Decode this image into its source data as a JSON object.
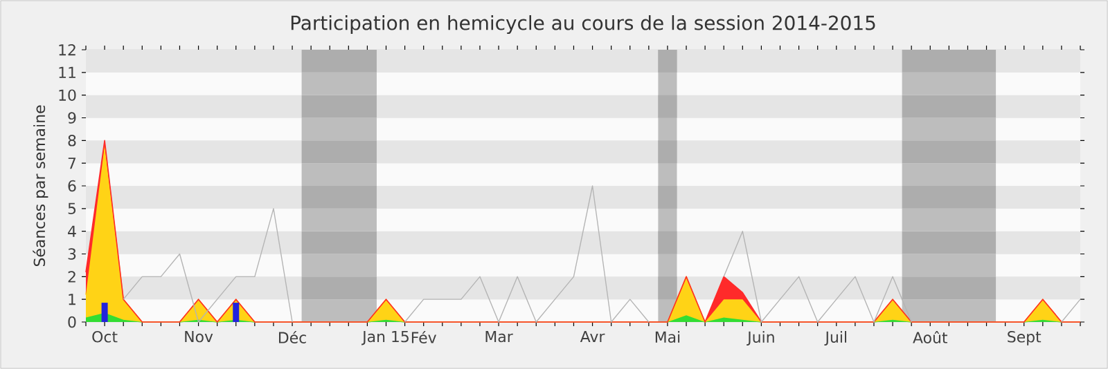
{
  "chart_data": {
    "type": "area",
    "title": "Participation en hemicycle au cours de la session 2014-2015",
    "ylabel": "Séances par semaine",
    "stacked": true,
    "grid": "y",
    "categories": [
      null,
      "Oct",
      null,
      null,
      null,
      null,
      "Nov",
      null,
      null,
      null,
      null,
      "Déc",
      null,
      null,
      null,
      null,
      "Jan 15",
      null,
      "Fév",
      null,
      null,
      null,
      "Mar",
      null,
      null,
      null,
      null,
      "Avr",
      null,
      null,
      null,
      "Mai",
      null,
      null,
      null,
      null,
      "Juin",
      null,
      null,
      null,
      "Juil",
      null,
      null,
      null,
      null,
      "Août",
      null,
      null,
      null,
      null,
      "Sept",
      null,
      null,
      null
    ],
    "ylim": [
      0,
      12
    ],
    "yticks": [
      0,
      1,
      2,
      3,
      4,
      5,
      6,
      7,
      8,
      9,
      10,
      11,
      12
    ],
    "series": [
      {
        "color": "#33dd33",
        "values": [
          0.2,
          0.4,
          0.1,
          0,
          0,
          0,
          0.1,
          0,
          0.1,
          0,
          0,
          0,
          0,
          0,
          0,
          0,
          0.1,
          0,
          0,
          0,
          0,
          0,
          0,
          0,
          0,
          0,
          0,
          0,
          0,
          0,
          0,
          0,
          0.3,
          0,
          0.2,
          0.1,
          0,
          0,
          0,
          0,
          0,
          0,
          0,
          0.1,
          0,
          0,
          0,
          0,
          0,
          0,
          0,
          0.1,
          0,
          0
        ]
      },
      {
        "color": "#ffd316",
        "values": [
          1.0,
          7.4,
          0.9,
          0,
          0,
          0,
          0.9,
          0,
          0.9,
          0,
          0,
          0,
          0,
          0,
          0,
          0,
          0.9,
          0,
          0,
          0,
          0,
          0,
          0,
          0,
          0,
          0,
          0,
          0,
          0,
          0,
          0,
          0,
          1.7,
          0,
          0.8,
          0.9,
          0,
          0,
          0,
          0,
          0,
          0,
          0,
          0.9,
          0,
          0,
          0,
          0,
          0,
          0,
          0,
          0.9,
          0,
          0
        ]
      },
      {
        "color": "#ff2a2a",
        "values": [
          1.0,
          0.2,
          0,
          0,
          0,
          0,
          0,
          0,
          0,
          0,
          0,
          0,
          0,
          0,
          0,
          0,
          0,
          0,
          0,
          0,
          0,
          0,
          0,
          0,
          0,
          0,
          0,
          0,
          0,
          0,
          0,
          0,
          0,
          0,
          1.0,
          0.3,
          0,
          0,
          0,
          0,
          0,
          0,
          0,
          0,
          0,
          0,
          0,
          0,
          0,
          0,
          0,
          0,
          0,
          0
        ]
      },
      {
        "type": "bar",
        "color": "#2323dd",
        "values": [
          null,
          0.85,
          null,
          null,
          null,
          null,
          null,
          null,
          0.85,
          null,
          null,
          null,
          null,
          null,
          null,
          null,
          null,
          null,
          null,
          null,
          null,
          null,
          null,
          null,
          null,
          null,
          null,
          null,
          null,
          null,
          null,
          null,
          null,
          null,
          null,
          null,
          null,
          null,
          null,
          null,
          null,
          null,
          null,
          null,
          null,
          null,
          null,
          null,
          null,
          null,
          null,
          null,
          null,
          null
        ]
      },
      {
        "type": "line",
        "color": "#b4b4b4",
        "values": [
          null,
          null,
          1,
          2,
          2,
          3,
          0,
          1,
          2,
          2,
          5,
          0,
          null,
          null,
          null,
          null,
          null,
          0,
          1,
          1,
          1,
          2,
          0,
          2,
          0,
          1,
          2,
          6,
          0,
          1,
          0,
          null,
          null,
          null,
          2,
          4,
          0,
          1,
          2,
          0,
          1,
          2,
          0,
          2,
          0,
          null,
          null,
          null,
          null,
          null,
          null,
          null,
          0,
          1
        ]
      }
    ]
  }
}
